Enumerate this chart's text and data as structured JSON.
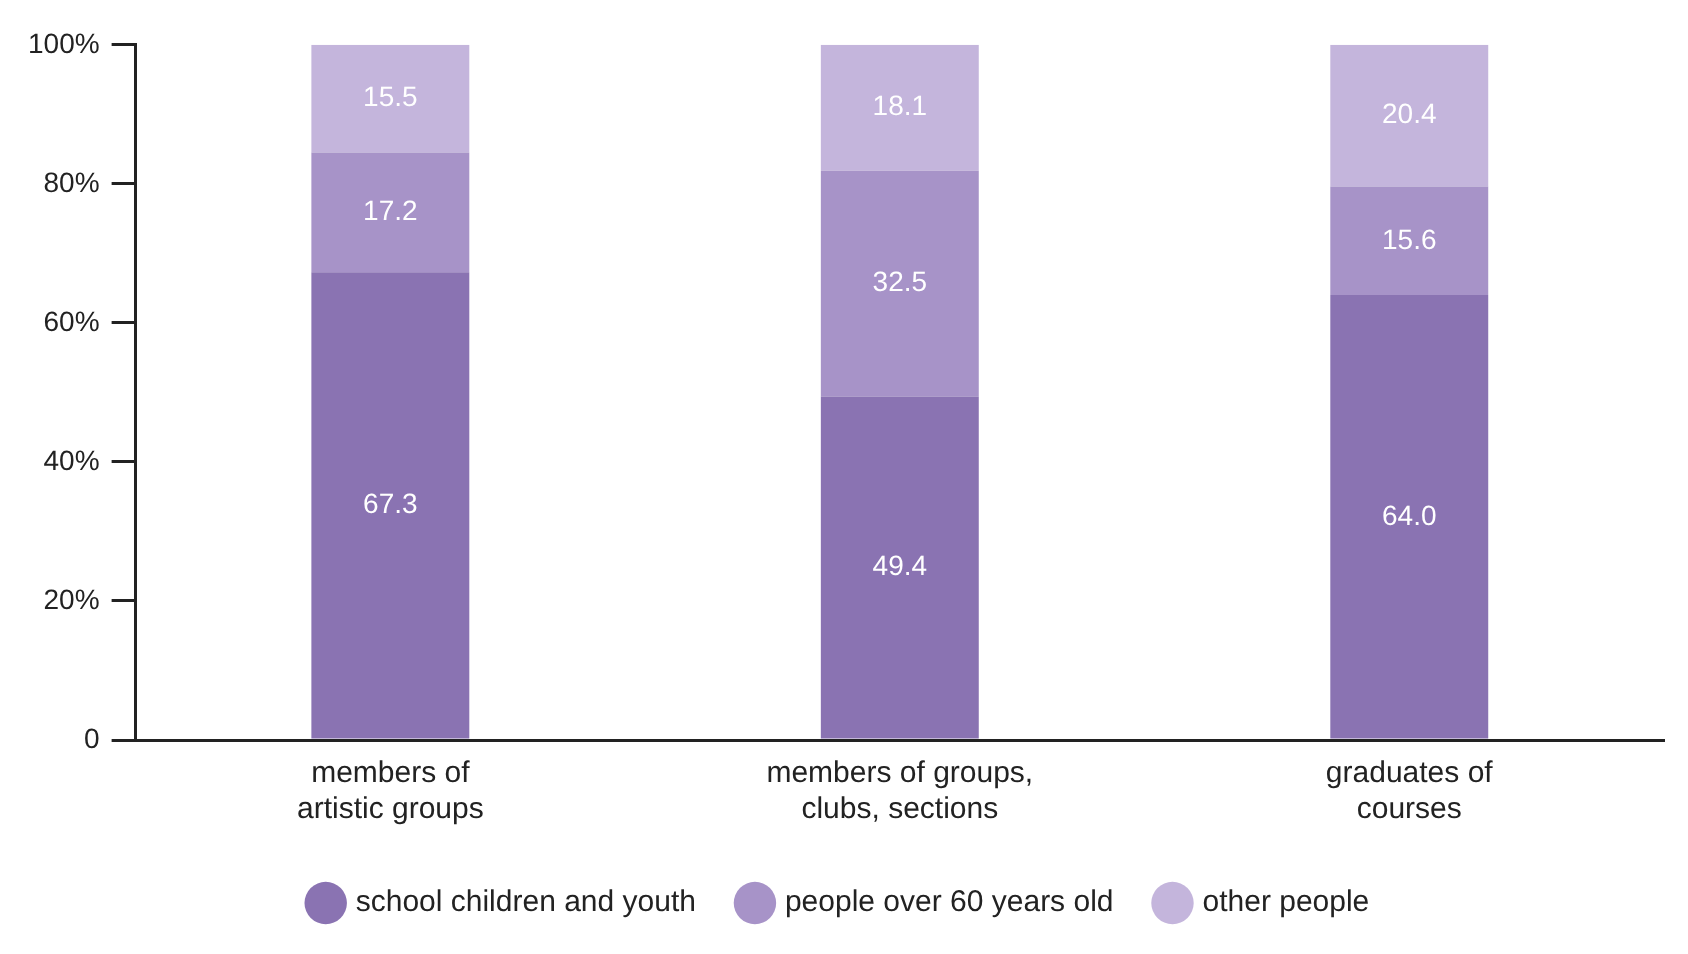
{
  "chart_data": {
    "type": "bar",
    "stacked": true,
    "categories": [
      "members of artistic groups",
      "members of groups, clubs, sections",
      "graduates of courses"
    ],
    "series": [
      {
        "name": "school children and youth",
        "color": "#8a73b2",
        "values": [
          67.3,
          49.4,
          64.0
        ],
        "value_labels": [
          "67.3",
          "49.4",
          "64.0"
        ]
      },
      {
        "name": "people over 60 years old",
        "color": "#a793c8",
        "values": [
          17.2,
          32.5,
          15.6
        ],
        "value_labels": [
          "17.2",
          "32.5",
          "15.6"
        ]
      },
      {
        "name": "other people",
        "color": "#c4b5dc",
        "values": [
          15.5,
          18.1,
          20.4
        ],
        "value_labels": [
          "15.5",
          "18.1",
          "20.4"
        ]
      }
    ],
    "ylim": [
      0,
      100
    ],
    "yticks": [
      0,
      {
        "value": 20,
        "label": "20%"
      },
      {
        "value": 40,
        "label": "40%"
      },
      {
        "value": 60,
        "label": "60%"
      },
      {
        "value": 80,
        "label": "80%"
      },
      {
        "value": 100,
        "label": "100%"
      }
    ],
    "grid": false,
    "legend": "bottom"
  }
}
